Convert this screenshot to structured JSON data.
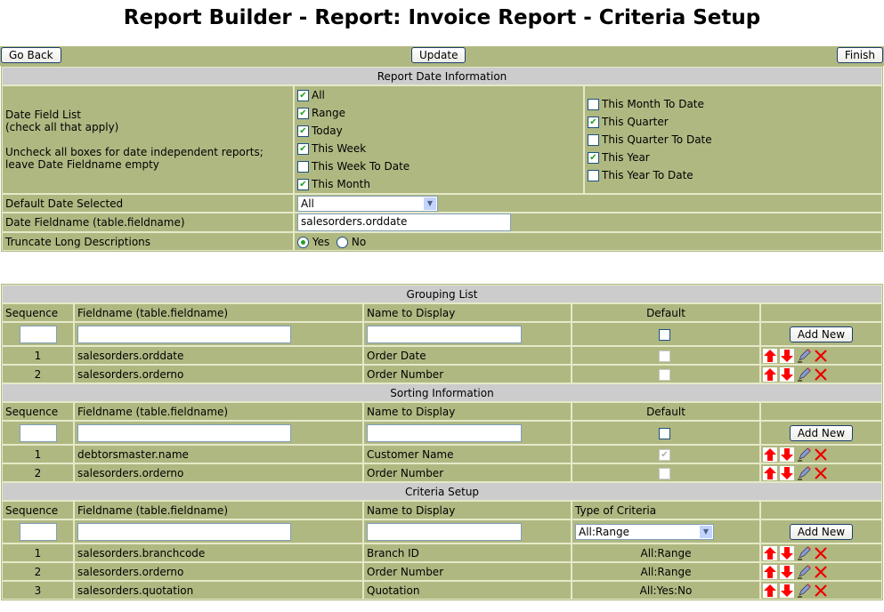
{
  "title": "Report Builder - Report: Invoice Report - Criteria Setup",
  "toolbar": {
    "go_back": "Go Back",
    "update": "Update",
    "finish": "Finish"
  },
  "date_info": {
    "header": "Report Date Information",
    "field_list_label": "Date Field List",
    "field_list_hint": "(check all that apply)",
    "uncheck_hint_1": "Uncheck all boxes for date independent reports;",
    "uncheck_hint_2": "leave Date Fieldname empty",
    "options_left": [
      {
        "label": "All",
        "checked": true
      },
      {
        "label": "Range",
        "checked": true
      },
      {
        "label": "Today",
        "checked": true
      },
      {
        "label": "This Week",
        "checked": true
      },
      {
        "label": "This Week To Date",
        "checked": false
      },
      {
        "label": "This Month",
        "checked": true
      }
    ],
    "options_right": [
      {
        "label": "This Month To Date",
        "checked": false
      },
      {
        "label": "This Quarter",
        "checked": true
      },
      {
        "label": "This Quarter To Date",
        "checked": false
      },
      {
        "label": "This Year",
        "checked": true
      },
      {
        "label": "This Year To Date",
        "checked": false
      }
    ],
    "default_date_label": "Default Date Selected",
    "default_date_value": "All",
    "fieldname_label": "Date Fieldname (table.fieldname)",
    "fieldname_value": "salesorders.orddate",
    "truncate_label": "Truncate Long Descriptions",
    "truncate_yes": "Yes",
    "truncate_no": "No",
    "truncate_selected": "Yes"
  },
  "sections": [
    {
      "title": "Grouping List",
      "columns": [
        "Sequence",
        "Fieldname (table.fieldname)",
        "Name to Display",
        "Default",
        ""
      ],
      "last_type": "checkbox",
      "add_label": "Add New",
      "rows": [
        {
          "seq": "1",
          "field": "salesorders.orddate",
          "name": "Order Date",
          "default": false
        },
        {
          "seq": "2",
          "field": "salesorders.orderno",
          "name": "Order Number",
          "default": false
        }
      ]
    },
    {
      "title": "Sorting Information",
      "columns": [
        "Sequence",
        "Fieldname (table.fieldname)",
        "Name to Display",
        "Default",
        ""
      ],
      "last_type": "checkbox",
      "add_label": "Add New",
      "rows": [
        {
          "seq": "1",
          "field": "debtorsmaster.name",
          "name": "Customer Name",
          "default": true
        },
        {
          "seq": "2",
          "field": "salesorders.orderno",
          "name": "Order Number",
          "default": false
        }
      ]
    },
    {
      "title": "Criteria Setup",
      "columns": [
        "Sequence",
        "Fieldname (table.fieldname)",
        "Name to Display",
        "Type of Criteria",
        ""
      ],
      "last_type": "select",
      "select_value": "All:Range",
      "add_label": "Add New",
      "rows": [
        {
          "seq": "1",
          "field": "salesorders.branchcode",
          "name": "Branch ID",
          "type": "All:Range"
        },
        {
          "seq": "2",
          "field": "salesorders.orderno",
          "name": "Order Number",
          "type": "All:Range"
        },
        {
          "seq": "3",
          "field": "salesorders.quotation",
          "name": "Quotation",
          "type": "All:Yes:No"
        }
      ]
    }
  ],
  "icons": [
    "arrow-up-icon",
    "arrow-down-icon",
    "pencil-edit-icon",
    "delete-x-icon"
  ]
}
